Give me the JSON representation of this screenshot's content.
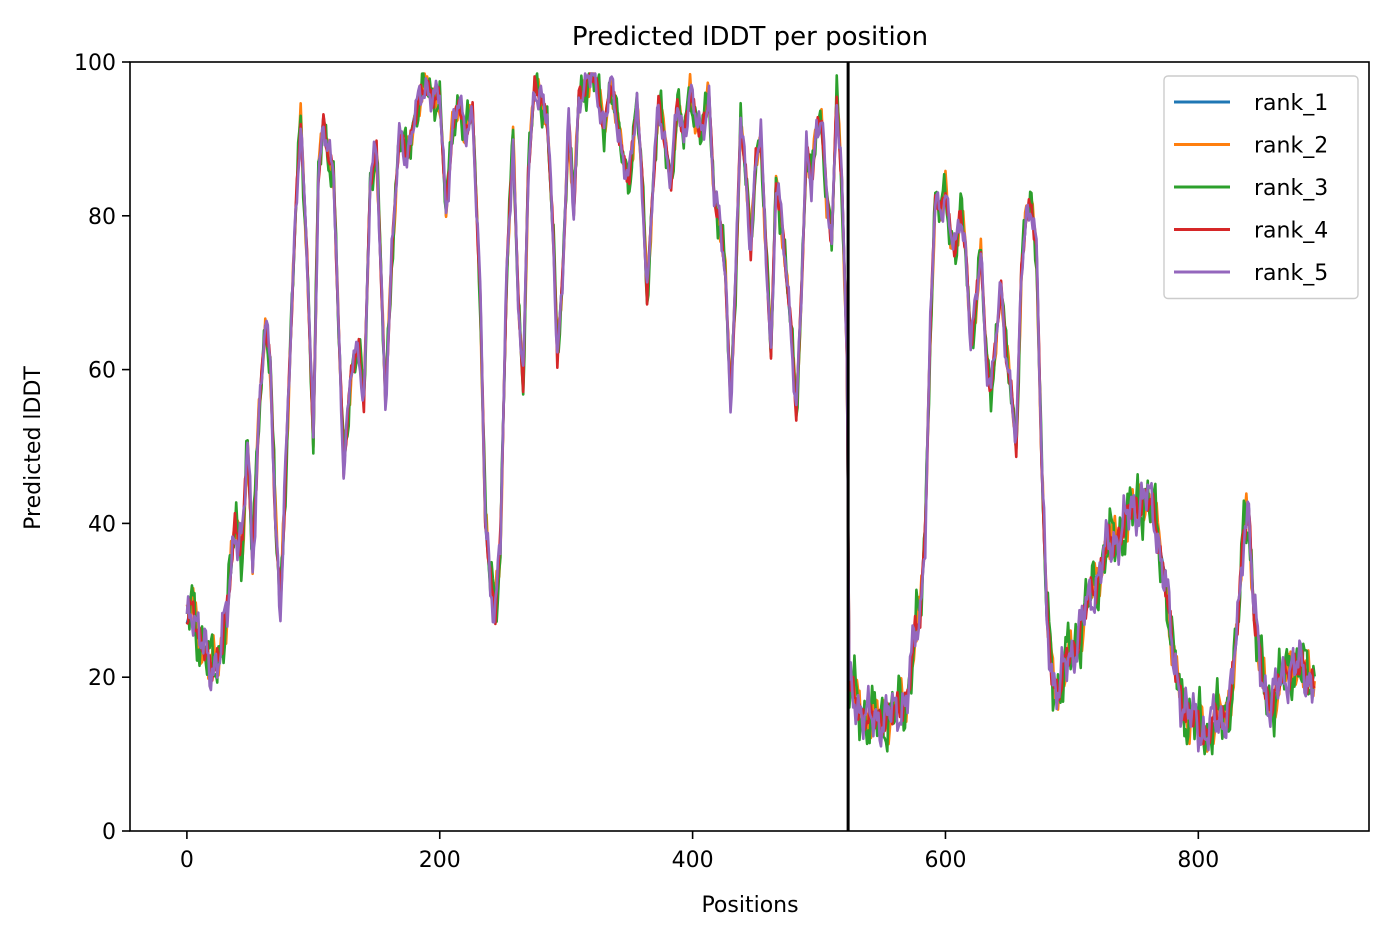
{
  "chart_data": {
    "type": "line",
    "title": "Predicted lDDT per position",
    "xlabel": "Positions",
    "ylabel": "Predicted lDDT",
    "xlim": [
      -45,
      935
    ],
    "ylim": [
      0,
      100
    ],
    "xticks": [
      0,
      200,
      400,
      600,
      800
    ],
    "yticks": [
      0,
      20,
      40,
      60,
      80,
      100
    ],
    "grid": false,
    "legend_position": "top-right",
    "vline": {
      "x": 523,
      "color": "#000000"
    },
    "series": [
      {
        "name": "rank_1",
        "color": "#1f77b4",
        "offset": 0
      },
      {
        "name": "rank_2",
        "color": "#ff7f0e",
        "offset": 1.0
      },
      {
        "name": "rank_3",
        "color": "#2ca02c",
        "offset": 1.5
      },
      {
        "name": "rank_4",
        "color": "#d62728",
        "offset": 0.8
      },
      {
        "name": "rank_5",
        "color": "#9467bd",
        "offset": 1.2
      }
    ],
    "base_profile": [
      [
        0,
        27
      ],
      [
        5,
        30
      ],
      [
        10,
        25
      ],
      [
        18,
        21
      ],
      [
        25,
        23
      ],
      [
        32,
        28
      ],
      [
        38,
        40
      ],
      [
        44,
        38
      ],
      [
        48,
        50
      ],
      [
        52,
        34
      ],
      [
        57,
        55
      ],
      [
        62,
        66
      ],
      [
        66,
        60
      ],
      [
        70,
        40
      ],
      [
        74,
        30
      ],
      [
        80,
        55
      ],
      [
        86,
        80
      ],
      [
        90,
        93
      ],
      [
        95,
        75
      ],
      [
        100,
        50
      ],
      [
        104,
        85
      ],
      [
        108,
        93
      ],
      [
        112,
        88
      ],
      [
        116,
        85
      ],
      [
        120,
        65
      ],
      [
        124,
        48
      ],
      [
        130,
        60
      ],
      [
        136,
        62
      ],
      [
        140,
        56
      ],
      [
        145,
        85
      ],
      [
        150,
        88
      ],
      [
        154,
        70
      ],
      [
        157,
        56
      ],
      [
        162,
        75
      ],
      [
        168,
        90
      ],
      [
        174,
        88
      ],
      [
        180,
        93
      ],
      [
        190,
        97
      ],
      [
        200,
        95
      ],
      [
        205,
        80
      ],
      [
        210,
        92
      ],
      [
        215,
        95
      ],
      [
        220,
        90
      ],
      [
        226,
        94
      ],
      [
        232,
        70
      ],
      [
        236,
        40
      ],
      [
        240,
        32
      ],
      [
        244,
        30
      ],
      [
        248,
        38
      ],
      [
        253,
        72
      ],
      [
        258,
        90
      ],
      [
        262,
        70
      ],
      [
        266,
        58
      ],
      [
        270,
        85
      ],
      [
        275,
        97
      ],
      [
        280,
        96
      ],
      [
        285,
        92
      ],
      [
        290,
        76
      ],
      [
        293,
        62
      ],
      [
        297,
        72
      ],
      [
        302,
        92
      ],
      [
        306,
        80
      ],
      [
        310,
        96
      ],
      [
        320,
        98
      ],
      [
        325,
        96
      ],
      [
        330,
        92
      ],
      [
        335,
        97
      ],
      [
        340,
        92
      ],
      [
        345,
        88
      ],
      [
        350,
        85
      ],
      [
        356,
        94
      ],
      [
        360,
        85
      ],
      [
        364,
        70
      ],
      [
        368,
        82
      ],
      [
        373,
        94
      ],
      [
        378,
        90
      ],
      [
        383,
        85
      ],
      [
        388,
        94
      ],
      [
        393,
        90
      ],
      [
        398,
        97
      ],
      [
        403,
        92
      ],
      [
        407,
        90
      ],
      [
        413,
        96
      ],
      [
        417,
        83
      ],
      [
        422,
        78
      ],
      [
        426,
        72
      ],
      [
        430,
        56
      ],
      [
        434,
        72
      ],
      [
        438,
        92
      ],
      [
        442,
        85
      ],
      [
        446,
        76
      ],
      [
        450,
        88
      ],
      [
        454,
        90
      ],
      [
        458,
        75
      ],
      [
        462,
        62
      ],
      [
        466,
        85
      ],
      [
        470,
        80
      ],
      [
        474,
        72
      ],
      [
        478,
        65
      ],
      [
        482,
        55
      ],
      [
        486,
        70
      ],
      [
        490,
        88
      ],
      [
        494,
        84
      ],
      [
        498,
        92
      ],
      [
        502,
        93
      ],
      [
        506,
        82
      ],
      [
        510,
        76
      ],
      [
        514,
        96
      ],
      [
        518,
        85
      ],
      [
        522,
        62
      ]
    ],
    "base_profile_2": [
      [
        524,
        18
      ],
      [
        530,
        17
      ],
      [
        540,
        14
      ],
      [
        550,
        15
      ],
      [
        560,
        15
      ],
      [
        570,
        18
      ],
      [
        576,
        25
      ],
      [
        580,
        28
      ],
      [
        584,
        40
      ],
      [
        588,
        65
      ],
      [
        592,
        82
      ],
      [
        596,
        80
      ],
      [
        600,
        84
      ],
      [
        604,
        78
      ],
      [
        608,
        75
      ],
      [
        612,
        80
      ],
      [
        616,
        76
      ],
      [
        620,
        64
      ],
      [
        624,
        68
      ],
      [
        628,
        75
      ],
      [
        632,
        62
      ],
      [
        636,
        58
      ],
      [
        640,
        64
      ],
      [
        644,
        70
      ],
      [
        648,
        62
      ],
      [
        652,
        58
      ],
      [
        656,
        50
      ],
      [
        660,
        72
      ],
      [
        664,
        80
      ],
      [
        668,
        82
      ],
      [
        672,
        76
      ],
      [
        676,
        48
      ],
      [
        680,
        28
      ],
      [
        685,
        20
      ],
      [
        690,
        18
      ],
      [
        696,
        22
      ],
      [
        702,
        24
      ],
      [
        710,
        28
      ],
      [
        718,
        32
      ],
      [
        726,
        36
      ],
      [
        734,
        38
      ],
      [
        742,
        40
      ],
      [
        750,
        42
      ],
      [
        758,
        44
      ],
      [
        766,
        40
      ],
      [
        774,
        33
      ],
      [
        780,
        22
      ],
      [
        786,
        18
      ],
      [
        792,
        15
      ],
      [
        798,
        14
      ],
      [
        806,
        13
      ],
      [
        814,
        14
      ],
      [
        820,
        15
      ],
      [
        826,
        18
      ],
      [
        832,
        28
      ],
      [
        836,
        40
      ],
      [
        840,
        42
      ],
      [
        844,
        28
      ],
      [
        850,
        20
      ],
      [
        856,
        17
      ],
      [
        862,
        18
      ],
      [
        868,
        20
      ],
      [
        874,
        22
      ],
      [
        880,
        21
      ],
      [
        886,
        20
      ],
      [
        892,
        20
      ]
    ]
  }
}
